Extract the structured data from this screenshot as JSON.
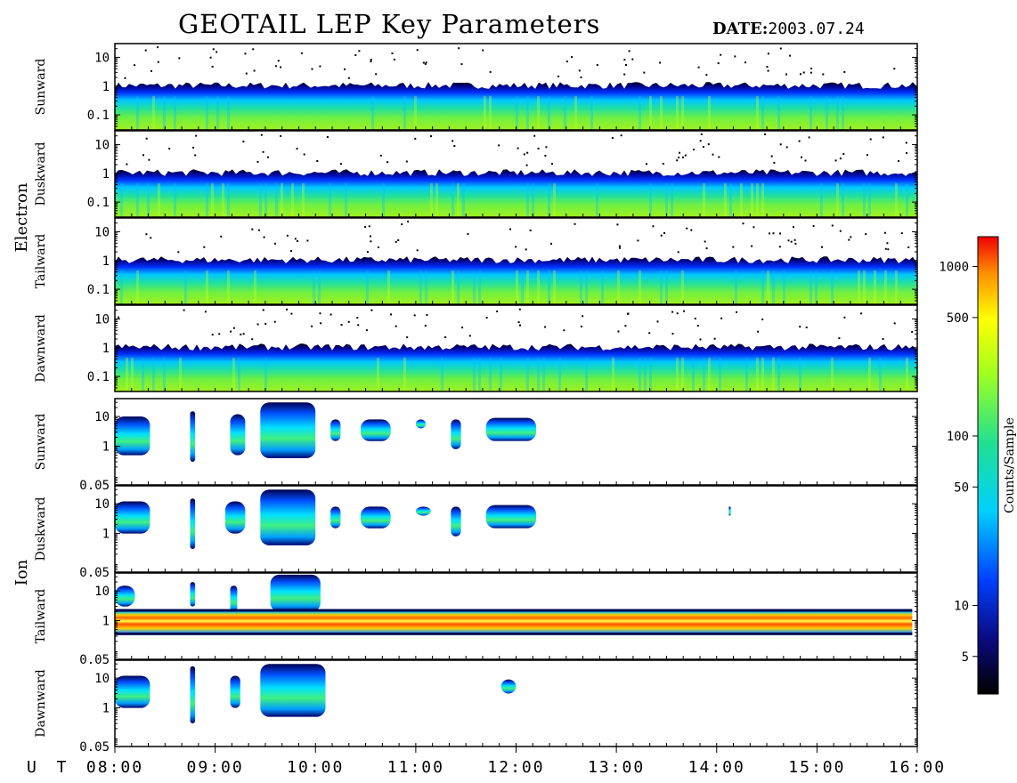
{
  "header": {
    "title": "GEOTAIL LEP Key Parameters",
    "date_label": "DATE:",
    "date_value": "2003.07.24"
  },
  "chart_data": {
    "type": "heatmap",
    "x_axis": {
      "prefix": "U T",
      "ticks": [
        "08:00",
        "09:00",
        "10:00",
        "11:00",
        "12:00",
        "13:00",
        "14:00",
        "15:00",
        "16:00"
      ],
      "range_hours": [
        8,
        16
      ]
    },
    "groups": [
      {
        "name": "Electron",
        "panels": [
          {
            "direction": "Sunward",
            "y_ticks": [
              "10",
              "1",
              "0.1"
            ],
            "y_range": [
              0.03,
              30
            ],
            "y_scale": "log"
          },
          {
            "direction": "Duskward",
            "y_ticks": [
              "10",
              "1",
              "0.1"
            ],
            "y_range": [
              0.03,
              30
            ],
            "y_scale": "log"
          },
          {
            "direction": "Tailward",
            "y_ticks": [
              "10",
              "1",
              "0.1"
            ],
            "y_range": [
              0.03,
              30
            ],
            "y_scale": "log"
          },
          {
            "direction": "Dawnward",
            "y_ticks": [
              "10",
              "1",
              "0.1"
            ],
            "y_range": [
              0.03,
              30
            ],
            "y_scale": "log"
          }
        ]
      },
      {
        "name": "Ion",
        "panels": [
          {
            "direction": "Sunward",
            "y_ticks": [
              "10",
              "1",
              "0.05"
            ],
            "y_range": [
              0.05,
              40
            ],
            "y_scale": "log"
          },
          {
            "direction": "Duskward",
            "y_ticks": [
              "10",
              "1",
              "0.05"
            ],
            "y_range": [
              0.05,
              40
            ],
            "y_scale": "log"
          },
          {
            "direction": "Tailward",
            "y_ticks": [
              "10",
              "1",
              "0.05"
            ],
            "y_range": [
              0.05,
              40
            ],
            "y_scale": "log"
          },
          {
            "direction": "Dawnward",
            "y_ticks": [
              "10",
              "1",
              "0.05"
            ],
            "y_range": [
              0.05,
              40
            ],
            "y_scale": "log"
          }
        ]
      }
    ],
    "colorbar": {
      "label": "Counts/Sample",
      "scale": "log",
      "range": [
        3,
        1500
      ],
      "ticks": [
        "1000",
        "500",
        "100",
        "50",
        "10",
        "5"
      ],
      "tick_values": [
        1000,
        500,
        100,
        50,
        10,
        5
      ]
    },
    "electron_band": {
      "upper_edge": 0.8,
      "ragged_top": 2,
      "lower_edge": 0.03
    },
    "ion_blobs": [
      {
        "panel": 0,
        "t": [
          8.0,
          8.35
        ],
        "e": [
          0.5,
          10
        ]
      },
      {
        "panel": 0,
        "t": [
          8.75,
          8.8
        ],
        "e": [
          0.3,
          15
        ]
      },
      {
        "panel": 0,
        "t": [
          9.15,
          9.3
        ],
        "e": [
          0.5,
          12
        ]
      },
      {
        "panel": 0,
        "t": [
          9.45,
          10.0
        ],
        "e": [
          0.4,
          30
        ]
      },
      {
        "panel": 0,
        "t": [
          10.15,
          10.25
        ],
        "e": [
          1.5,
          8
        ]
      },
      {
        "panel": 0,
        "t": [
          10.45,
          10.75
        ],
        "e": [
          1.5,
          8
        ]
      },
      {
        "panel": 0,
        "t": [
          11.0,
          11.1
        ],
        "e": [
          4,
          8
        ]
      },
      {
        "panel": 0,
        "t": [
          11.35,
          11.45
        ],
        "e": [
          0.8,
          8
        ]
      },
      {
        "panel": 0,
        "t": [
          11.7,
          12.2
        ],
        "e": [
          1.5,
          9
        ]
      },
      {
        "panel": 1,
        "t": [
          8.0,
          8.35
        ],
        "e": [
          1,
          12
        ]
      },
      {
        "panel": 1,
        "t": [
          8.75,
          8.8
        ],
        "e": [
          0.3,
          15
        ]
      },
      {
        "panel": 1,
        "t": [
          9.1,
          9.3
        ],
        "e": [
          1,
          12
        ]
      },
      {
        "panel": 1,
        "t": [
          9.45,
          10.0
        ],
        "e": [
          0.4,
          30
        ]
      },
      {
        "panel": 1,
        "t": [
          10.15,
          10.25
        ],
        "e": [
          1.5,
          8
        ]
      },
      {
        "panel": 1,
        "t": [
          10.45,
          10.75
        ],
        "e": [
          1.5,
          8
        ]
      },
      {
        "panel": 1,
        "t": [
          11.0,
          11.15
        ],
        "e": [
          4,
          8
        ]
      },
      {
        "panel": 1,
        "t": [
          11.35,
          11.45
        ],
        "e": [
          0.8,
          8
        ]
      },
      {
        "panel": 1,
        "t": [
          11.7,
          12.2
        ],
        "e": [
          1.5,
          9
        ]
      },
      {
        "panel": 1,
        "t": [
          14.12,
          14.14
        ],
        "e": [
          4,
          8
        ]
      },
      {
        "panel": 2,
        "t": [
          8.0,
          8.2
        ],
        "e": [
          3,
          15
        ]
      },
      {
        "panel": 2,
        "t": [
          8.75,
          8.8
        ],
        "e": [
          3,
          20
        ]
      },
      {
        "panel": 2,
        "t": [
          9.15,
          9.22
        ],
        "e": [
          2,
          15
        ]
      },
      {
        "panel": 2,
        "t": [
          9.55,
          10.05
        ],
        "e": [
          2,
          35
        ]
      },
      {
        "panel": 3,
        "t": [
          8.0,
          8.35
        ],
        "e": [
          1,
          12
        ]
      },
      {
        "panel": 3,
        "t": [
          8.75,
          8.8
        ],
        "e": [
          0.3,
          25
        ]
      },
      {
        "panel": 3,
        "t": [
          9.15,
          9.25
        ],
        "e": [
          1,
          12
        ]
      },
      {
        "panel": 3,
        "t": [
          9.45,
          10.1
        ],
        "e": [
          0.5,
          30
        ]
      },
      {
        "panel": 3,
        "t": [
          11.85,
          12.0
        ],
        "e": [
          3,
          9
        ]
      }
    ],
    "ion_tailward_band": {
      "t": [
        8.0,
        15.95
      ],
      "e": [
        0.4,
        2
      ]
    }
  }
}
